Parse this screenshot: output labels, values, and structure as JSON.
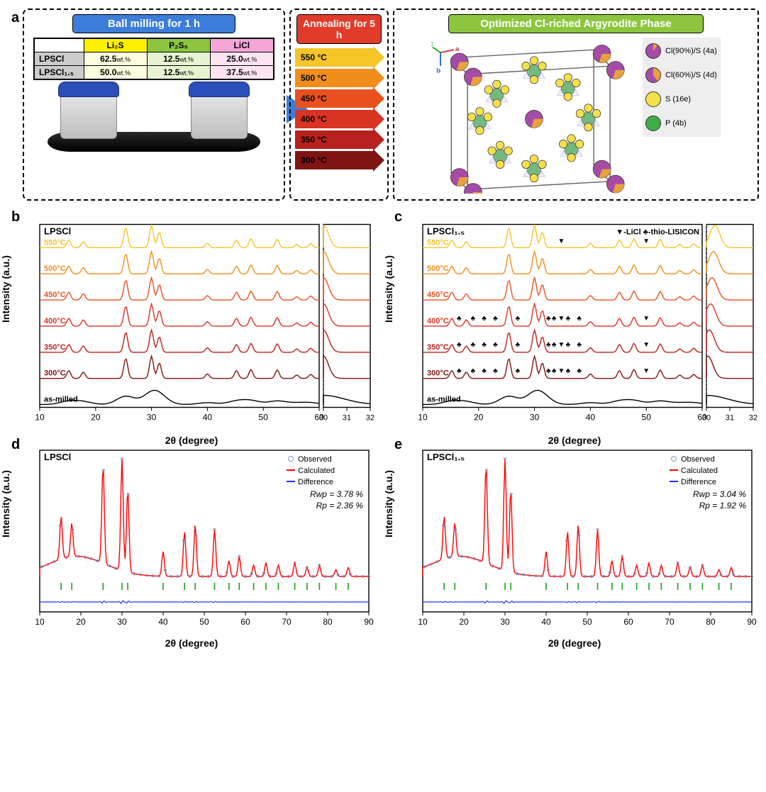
{
  "panel_labels": {
    "a": "a",
    "b": "b",
    "c": "c",
    "d": "d",
    "e": "e"
  },
  "a": {
    "box1_title": "Ball milling for 1 h",
    "box2_title": "Annealing for 5 h",
    "box3_title": "Optimized Cl-riched Argyrodite Phase",
    "table": {
      "headers": [
        "",
        "Li₂S",
        "P₂S₅",
        "LiCl"
      ],
      "rows": [
        {
          "name": "LPSCl",
          "lis": "62.5",
          "p2s5": "12.5",
          "licl": "25.0"
        },
        {
          "name": "LPSCl₁.₅",
          "lis": "50.0",
          "p2s5": "12.5",
          "licl": "37.5"
        }
      ],
      "unit": "wt.%"
    },
    "anneal": [
      {
        "t": "550 °C",
        "stem": "#f6c528",
        "head": "#f6c528"
      },
      {
        "t": "500 °C",
        "stem": "#ef8e1b",
        "head": "#ef8e1b"
      },
      {
        "t": "450 °C",
        "stem": "#e8511e",
        "head": "#e8511e"
      },
      {
        "t": "400 °C",
        "stem": "#d93324",
        "head": "#d93324"
      },
      {
        "t": "350 °C",
        "stem": "#b8221e",
        "head": "#b8221e"
      },
      {
        "t": "300 °C",
        "stem": "#7e1512",
        "head": "#7e1512"
      }
    ],
    "legend": [
      {
        "cls": "atom-split1",
        "label": "Cl(90%)/S (4a)"
      },
      {
        "cls": "atom-split2",
        "label": "Cl(60%)/S (4d)"
      },
      {
        "cls": "atom-yellow",
        "label": "S (16e)"
      },
      {
        "cls": "atom-green",
        "label": "P (4b)"
      }
    ],
    "axes": {
      "a": "a",
      "b": "b",
      "c": "c"
    }
  },
  "xrd_colors": {
    "traces": [
      "#f6c528",
      "#ef8e1b",
      "#e8511e",
      "#d93324",
      "#b8221e",
      "#7e1512",
      "#000000"
    ],
    "trace_labels": [
      "550°C",
      "500°C",
      "450°C",
      "400°C",
      "350°C",
      "300°C",
      "as-milled"
    ]
  },
  "b": {
    "title": "LPSCl",
    "xlabel": "2θ (degree)",
    "ylabel": "Intensity (a.u.)",
    "xlim": [
      10,
      60
    ],
    "xticks": [
      10,
      20,
      30,
      40,
      50,
      60
    ],
    "inset_xlim": [
      30,
      32
    ],
    "inset_xticks": [
      30,
      31,
      32
    ],
    "peak_positions": [
      15.2,
      17.8,
      25.4,
      30.0,
      31.4,
      40.0,
      45.2,
      47.8,
      52.5,
      56.0,
      58.5
    ]
  },
  "c": {
    "title": "LPSCl₁.₅",
    "xlabel": "2θ (degree)",
    "ylabel": "Intensity (a.u.)",
    "xlim": [
      10,
      60
    ],
    "xticks": [
      10,
      20,
      30,
      40,
      50,
      60
    ],
    "inset_xlim": [
      30,
      32
    ],
    "inset_xticks": [
      30,
      31,
      32
    ],
    "legend_marks": "▼-LiCl  ♣-thio-LISICON",
    "peak_positions": [
      15.2,
      17.8,
      25.4,
      30.0,
      31.4,
      40.0,
      45.2,
      47.8,
      52.5,
      56.0,
      58.5
    ],
    "licl_marks_x": [
      34.8,
      50.0
    ],
    "thio_marks_x": [
      16.5,
      19.0,
      21.0,
      23.0,
      27.0,
      32.5,
      33.5,
      36.0,
      38.0
    ]
  },
  "refine_common": {
    "xlabel": "2θ (degree)",
    "ylabel": "Intensity (a.u.)",
    "xlim": [
      10,
      90
    ],
    "xticks": [
      10,
      20,
      30,
      40,
      50,
      60,
      70,
      80,
      90
    ],
    "legend": [
      "Observed",
      "Calculated",
      "Difference"
    ],
    "legend_colors": {
      "observed": "#8097c8",
      "calculated": "#ff0000",
      "difference": "#2030ff",
      "ticks": "#18a018"
    },
    "peak_x": [
      15.2,
      17.8,
      25.4,
      30.0,
      31.4,
      40.0,
      45.2,
      47.8,
      52.5,
      56.0,
      58.5,
      62.0,
      65.0,
      68.0,
      72.0,
      75.0,
      78.0,
      82.0,
      85.0
    ],
    "peak_h": [
      0.38,
      0.3,
      0.88,
      1.0,
      0.74,
      0.22,
      0.4,
      0.46,
      0.42,
      0.14,
      0.18,
      0.1,
      0.12,
      0.1,
      0.12,
      0.08,
      0.1,
      0.06,
      0.08
    ]
  },
  "d": {
    "title": "LPSCl",
    "rwp": "Rwp = 3.78 %",
    "rp": "Rp = 2.36 %"
  },
  "e": {
    "title": "LPSCl₁.₅",
    "rwp": "Rwp = 3.04 %",
    "rp": "Rp = 1.92 %"
  }
}
